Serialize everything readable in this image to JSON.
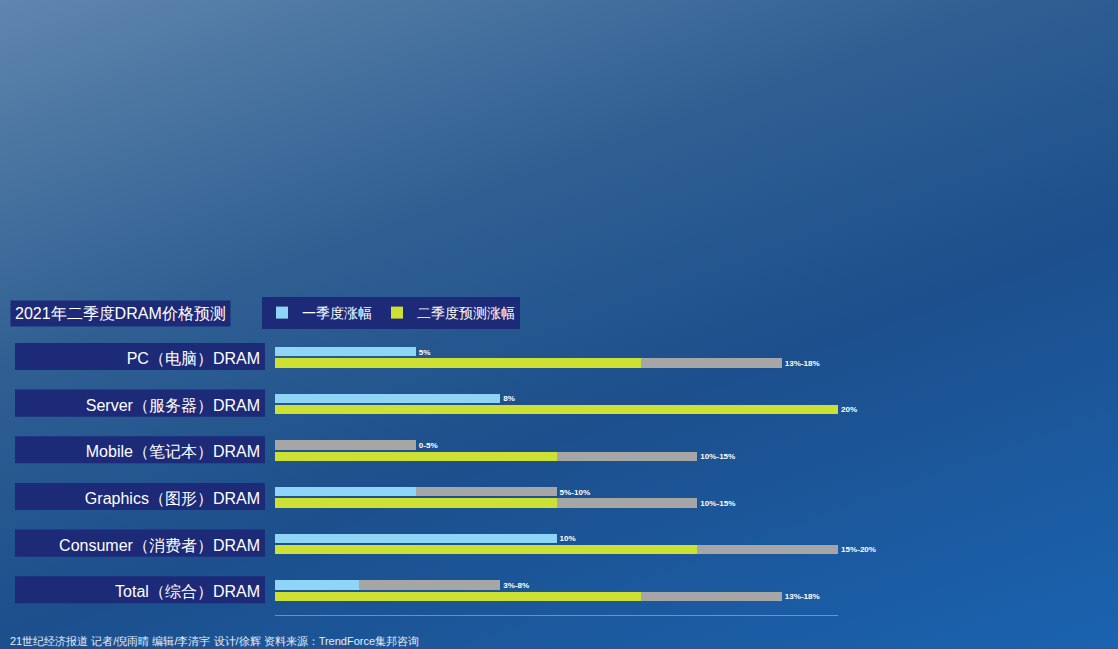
{
  "chart_data": {
    "type": "bar",
    "orientation": "horizontal",
    "title": "2021年二季度DRAM价格预测",
    "categories": [
      "PC（电脑）DRAM",
      "Server（服务器）DRAM",
      "Mobile（笔记本）DRAM",
      "Graphics（图形）DRAM",
      "Consumer（消费者）DRAM",
      "Total（综合）DRAM"
    ],
    "series": [
      {
        "name": "一季度涨幅",
        "color": "#8fd6f6",
        "values": [
          5,
          8,
          0,
          5,
          10,
          3
        ],
        "high": [
          null,
          null,
          5,
          10,
          null,
          8
        ],
        "value_labels": [
          "5%",
          "8%",
          "0-5%",
          "5%-10%",
          "10%",
          "3%-8%"
        ]
      },
      {
        "name": "二季度预测涨幅",
        "color": "#cde034",
        "values": [
          13,
          20,
          10,
          10,
          15,
          13
        ],
        "high": [
          18,
          null,
          15,
          15,
          20,
          18
        ],
        "value_labels": [
          "13%-18%",
          "20%",
          "10%-15%",
          "10%-15%",
          "15%-20%",
          "13%-18%"
        ]
      }
    ],
    "xlim": [
      0,
      20
    ],
    "xticks": [],
    "tick_labels": "y",
    "data_labels": true,
    "grid": false,
    "legend": "top left",
    "source": "21世纪经济报道 记者/倪雨晴 编辑/李清宇 设计/徐辉 资料来源：TrendForce集邦咨询"
  }
}
